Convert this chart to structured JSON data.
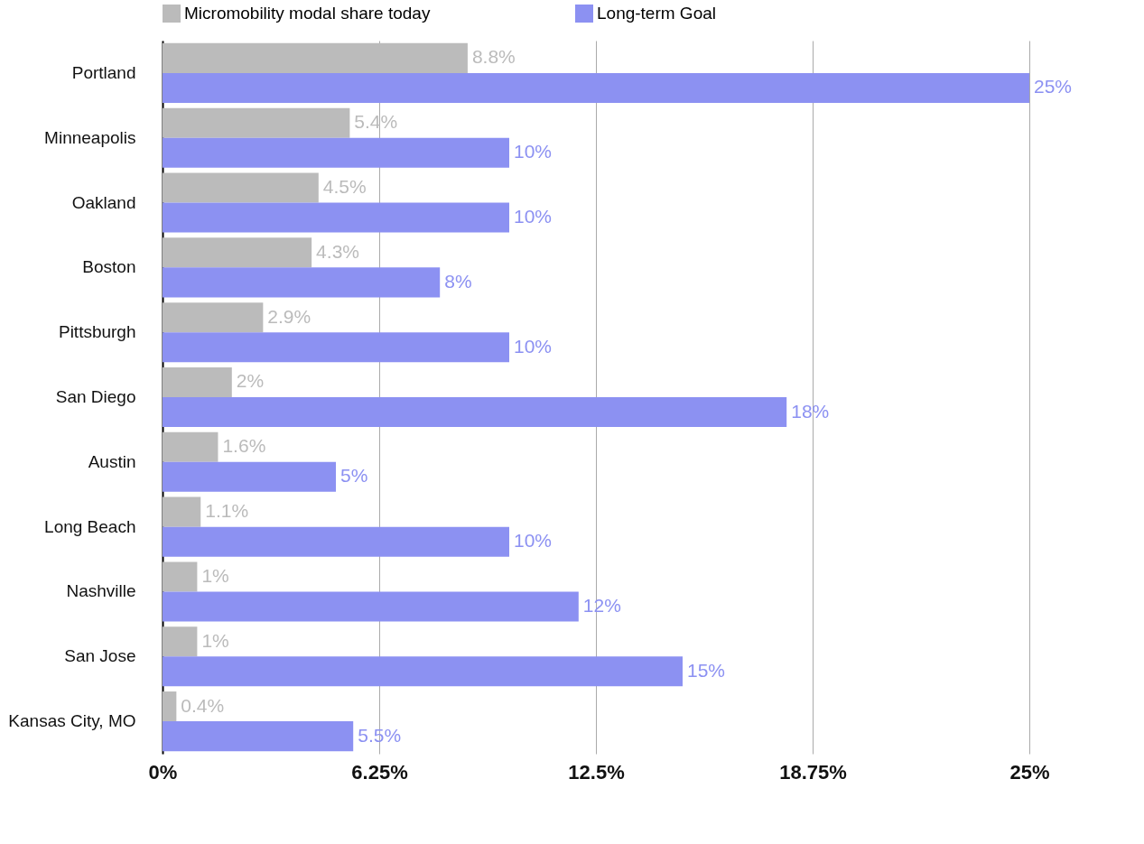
{
  "chart_data": {
    "type": "bar",
    "orientation": "horizontal",
    "categories": [
      "Portland",
      "Minneapolis",
      "Oakland",
      "Boston",
      "Pittsburgh",
      "San Diego",
      "Austin",
      "Long Beach",
      "Nashville",
      "San Jose",
      "Kansas City, MO"
    ],
    "series": [
      {
        "name": "Micromobility modal share today",
        "color": "#bbbbbb",
        "values": [
          8.8,
          5.4,
          4.5,
          4.3,
          2.9,
          2,
          1.6,
          1.1,
          1,
          1,
          0.4
        ],
        "value_labels": [
          "8.8%",
          "5.4%",
          "4.5%",
          "4.3%",
          "2.9%",
          "2%",
          "1.6%",
          "1.1%",
          "1%",
          "1%",
          "0.4%"
        ]
      },
      {
        "name": "Long-term Goal",
        "color": "#8c91f2",
        "values": [
          25,
          10,
          10,
          8,
          10,
          18,
          5,
          10,
          12,
          15,
          5.5
        ],
        "value_labels": [
          "25%",
          "10%",
          "10%",
          "8%",
          "10%",
          "18%",
          "5%",
          "10%",
          "12%",
          "15%",
          "5.5%"
        ]
      }
    ],
    "xlim": [
      0,
      25
    ],
    "xticks": [
      {
        "value": 0,
        "label": "0%"
      },
      {
        "value": 6.25,
        "label": "6.25%"
      },
      {
        "value": 12.5,
        "label": "12.5%"
      },
      {
        "value": 18.75,
        "label": "18.75%"
      },
      {
        "value": 25,
        "label": "25%"
      }
    ],
    "grid": "x",
    "legend": "top"
  }
}
